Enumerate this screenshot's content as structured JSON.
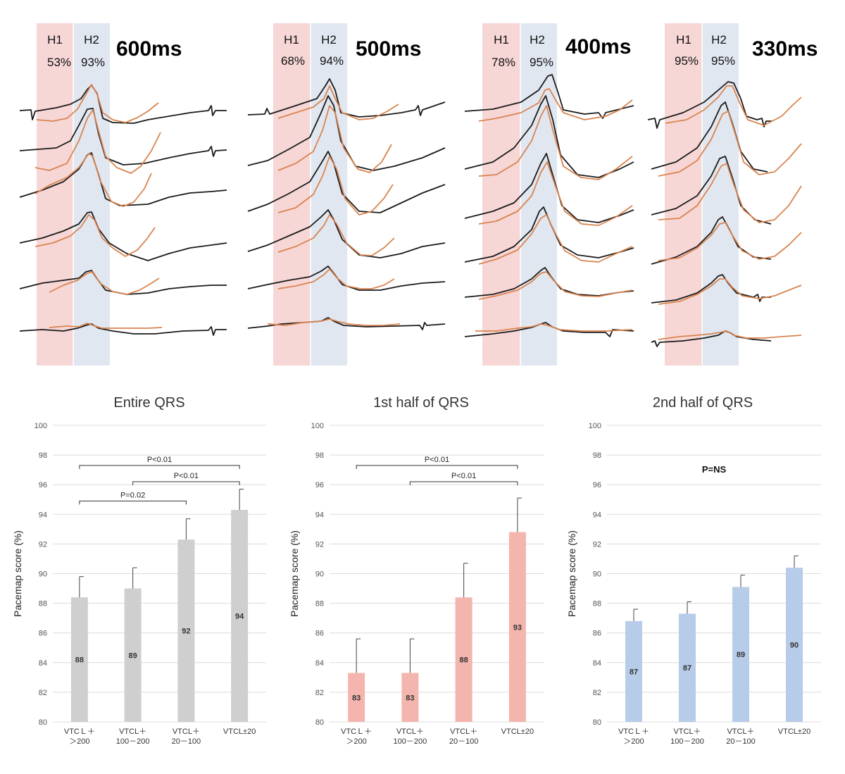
{
  "ecg_panels": [
    {
      "label": "600ms",
      "h1_label": "H1",
      "h2_label": "H2",
      "h1_pct": "53%",
      "h2_pct": "93%"
    },
    {
      "label": "500ms",
      "h1_label": "H1",
      "h2_label": "H2",
      "h1_pct": "68%",
      "h2_pct": "94%"
    },
    {
      "label": "400ms",
      "h1_label": "H1",
      "h2_label": "H2",
      "h1_pct": "78%",
      "h2_pct": "95%"
    },
    {
      "label": "330ms",
      "h1_label": "H1",
      "h2_label": "H2",
      "h1_pct": "95%",
      "h2_pct": "95%"
    }
  ],
  "colors": {
    "h1_band": "#f7d6d6",
    "h2_band": "#e1e7f1",
    "trace_black": "#1a1a1a",
    "trace_orange": "#d9844f",
    "bar_gray": "#d0cfcf",
    "bar_pink": "#f4b5ae",
    "bar_blue": "#b7cce8",
    "grid": "#dcdcdc"
  },
  "chart_data": [
    {
      "type": "bar",
      "title": "Entire QRS",
      "ylabel": "Pacemap score (%)",
      "ylim": [
        80,
        100
      ],
      "yticks": [
        "80",
        "82",
        "84",
        "86",
        "88",
        "90",
        "92",
        "94",
        "96",
        "98",
        "100"
      ],
      "categories": [
        [
          "VTCＬ＋",
          "＞200"
        ],
        [
          "VTCL＋",
          "100－200"
        ],
        [
          "VTCL＋",
          "20－100"
        ],
        [
          "VTCL±20"
        ]
      ],
      "values": [
        88.4,
        89.0,
        92.3,
        94.3
      ],
      "errors": [
        1.4,
        1.4,
        1.4,
        1.4
      ],
      "value_labels": [
        "88",
        "89",
        "92",
        "94"
      ],
      "color": "#d0cfcf",
      "brackets": [
        {
          "from": 0,
          "to": 3,
          "y": 97.3,
          "label": "P<0.01"
        },
        {
          "from": 1,
          "to": 3,
          "y": 96.2,
          "label": "P<0.01"
        },
        {
          "from": 0,
          "to": 2,
          "y": 94.9,
          "label": "P=0.02"
        }
      ],
      "annotation": ""
    },
    {
      "type": "bar",
      "title": "1st half of QRS",
      "ylabel": "Pacemap score (%)",
      "ylim": [
        80,
        100
      ],
      "yticks": [
        "80",
        "82",
        "84",
        "86",
        "88",
        "90",
        "92",
        "94",
        "96",
        "98",
        "100"
      ],
      "categories": [
        [
          "VTCＬ＋",
          "＞200"
        ],
        [
          "VTCL＋",
          "100－200"
        ],
        [
          "VTCL＋",
          "20－100"
        ],
        [
          "VTCL±20"
        ]
      ],
      "values": [
        83.3,
        83.3,
        88.4,
        92.8
      ],
      "errors": [
        2.3,
        2.3,
        2.3,
        2.3
      ],
      "value_labels": [
        "83",
        "83",
        "88",
        "93"
      ],
      "color": "#f4b5ae",
      "brackets": [
        {
          "from": 0,
          "to": 3,
          "y": 97.3,
          "label": "P<0.01"
        },
        {
          "from": 1,
          "to": 3,
          "y": 96.2,
          "label": "P<0.01"
        }
      ],
      "annotation": ""
    },
    {
      "type": "bar",
      "title": "2nd half of QRS",
      "ylabel": "Pacemap score (%)",
      "ylim": [
        80,
        100
      ],
      "yticks": [
        "80",
        "82",
        "84",
        "86",
        "88",
        "90",
        "92",
        "94",
        "96",
        "98",
        "100"
      ],
      "categories": [
        [
          "VTCＬ＋",
          "＞200"
        ],
        [
          "VTCL＋",
          "100－200"
        ],
        [
          "VTCL＋",
          "20－100"
        ],
        [
          "VTCL±20"
        ]
      ],
      "values": [
        86.8,
        87.3,
        89.1,
        90.4
      ],
      "errors": [
        0.8,
        0.8,
        0.8,
        0.8
      ],
      "value_labels": [
        "87",
        "87",
        "89",
        "90"
      ],
      "color": "#b7cce8",
      "brackets": [],
      "annotation": "P=NS"
    }
  ]
}
